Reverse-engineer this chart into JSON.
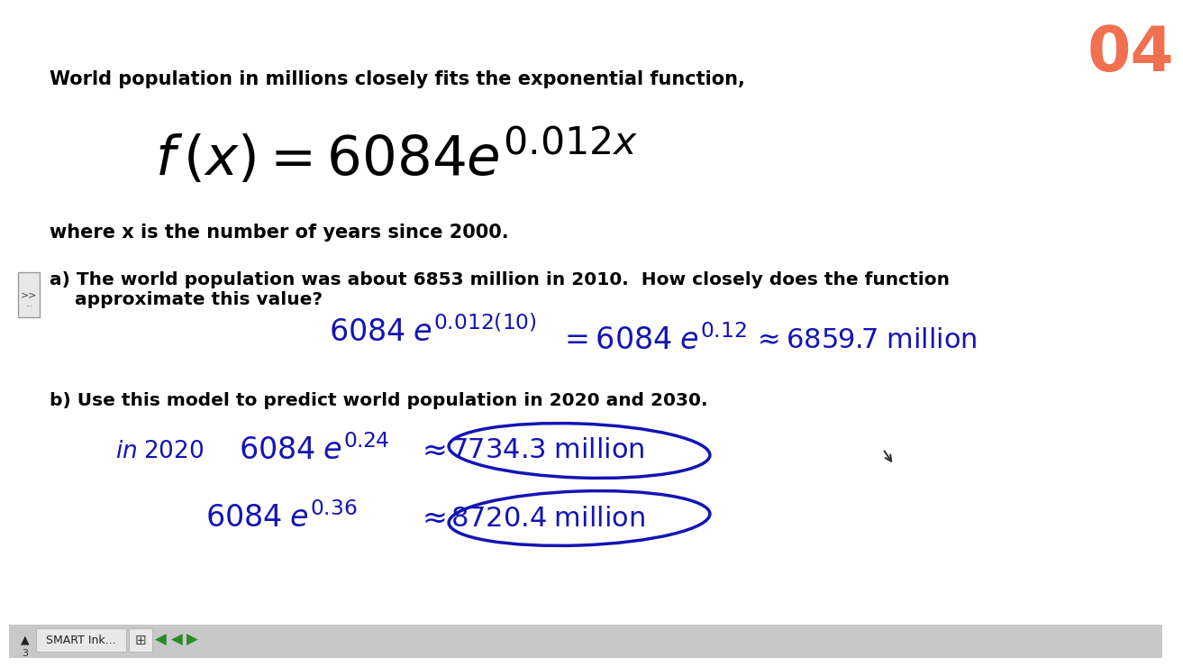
{
  "bg_color": "#ffffff",
  "title_number": "04",
  "title_number_color": "#f07050",
  "line1": "World population in millions closely fits the exponential function,",
  "line2": "where x is the number of years since 2000.",
  "part_a_label": "a) The world population was about 6853 million in 2010.  How closely does the function",
  "part_a_label2": "    approximate this value?",
  "part_b_label": "b) Use this model to predict world population in 2020 and 2030.",
  "handwritten_color": "#1414b4",
  "bold_text_color": "#000000",
  "bottom_bar_color": "#d8d8d8"
}
